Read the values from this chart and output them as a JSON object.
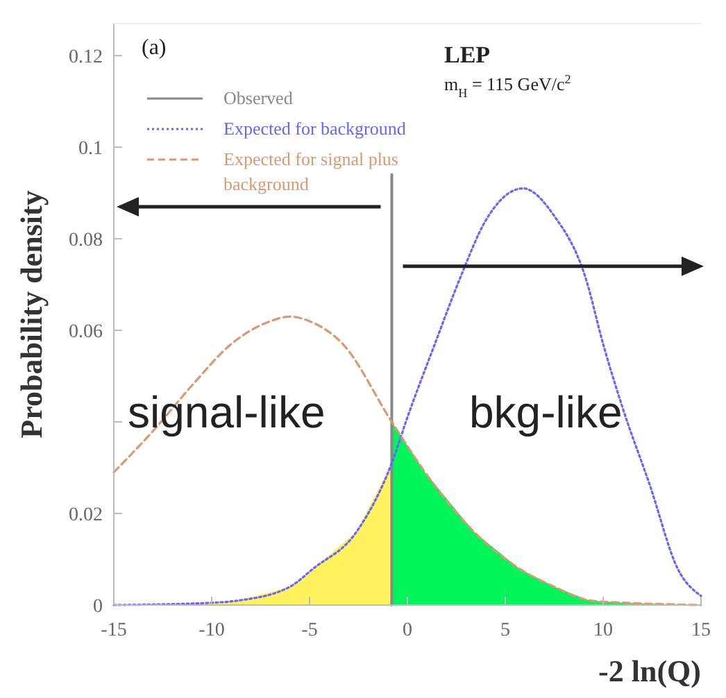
{
  "chart_data": {
    "type": "line",
    "xlabel": "-2 ln(Q)",
    "ylabel": "Probability density",
    "xlim": [
      -15,
      15
    ],
    "ylim": [
      0,
      0.127
    ],
    "xticks": [
      -15,
      -10,
      -5,
      0,
      5,
      10,
      15
    ],
    "yticks": [
      0,
      0.02,
      {
        "value": 0.04,
        "label": null
      },
      0.06,
      0.08,
      0.1,
      0.12
    ],
    "legend": "top left",
    "grid": false,
    "annotations": [
      "(a)",
      "LEP",
      "m$_{H}$ = 115 GeV/c$^{2}$",
      "signal-like",
      "bkg-like"
    ],
    "series": [
      {
        "type": "area",
        "color": "#fff25e",
        "x": [
          -15,
          -10,
          -8.6,
          -6,
          -4.8,
          -2.6,
          -0.8
        ],
        "values": [
          0,
          0.0005,
          0.001,
          0.004,
          0.008,
          0.016,
          0.031
        ]
      },
      {
        "type": "area",
        "color": "#00f55a",
        "x": [
          -0.8,
          0.9,
          3.4,
          5.7,
          7.5,
          9.3,
          11,
          13,
          15
        ],
        "values": [
          0.04,
          0.029,
          0.016,
          0.008,
          0.004,
          0.001,
          0.0005,
          0.0002,
          0
        ]
      },
      {
        "name": "Observed",
        "color": "#888888",
        "line_style": "solid",
        "x": [
          -0.8,
          -0.8
        ],
        "values": [
          0,
          0.094
        ]
      },
      {
        "name": "Expected for background",
        "color": "#6666ff",
        "line_style": "dotted",
        "x": [
          -15,
          -10,
          -8.6,
          -6,
          -4.8,
          -2.6,
          -0.8,
          0,
          1.4,
          2.7,
          4,
          5.9,
          7.5,
          9.1,
          10,
          11,
          12.4,
          13.8,
          15
        ],
        "values": [
          0,
          0.0005,
          0.001,
          0.004,
          0.008,
          0.016,
          0.031,
          0.041,
          0.057,
          0.0715,
          0.084,
          0.091,
          0.085,
          0.0715,
          0.057,
          0.043,
          0.026,
          0.008,
          0.002
        ]
      },
      {
        "name": "Expected for signal plus background",
        "color": "#d99a72",
        "line_style": "dashed",
        "x": [
          -15,
          -13,
          -11,
          -9,
          -7,
          -6,
          -5,
          -3.3,
          -0.8,
          0.9,
          3.4,
          5.7,
          7.5,
          9.3,
          11,
          13,
          15
        ],
        "values": [
          0.029,
          0.038,
          0.048,
          0.057,
          0.062,
          0.063,
          0.062,
          0.057,
          0.04,
          0.029,
          0.016,
          0.008,
          0.004,
          0.001,
          0.0005,
          0.0002,
          0
        ]
      }
    ]
  }
}
